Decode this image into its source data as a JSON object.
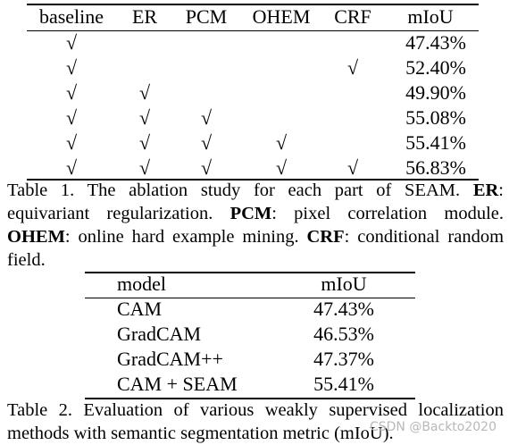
{
  "table1": {
    "headers": [
      "baseline",
      "ER",
      "PCM",
      "OHEM",
      "CRF",
      "mIoU"
    ],
    "check_glyph": "√",
    "rows": [
      {
        "checks": [
          true,
          false,
          false,
          false,
          false
        ],
        "miou": "47.43%"
      },
      {
        "checks": [
          true,
          false,
          false,
          false,
          true
        ],
        "miou": "52.40%"
      },
      {
        "checks": [
          true,
          true,
          false,
          false,
          false
        ],
        "miou": "49.90%"
      },
      {
        "checks": [
          true,
          true,
          true,
          false,
          false
        ],
        "miou": "55.08%"
      },
      {
        "checks": [
          true,
          true,
          true,
          true,
          false
        ],
        "miou": "55.41%"
      },
      {
        "checks": [
          true,
          true,
          true,
          true,
          true
        ],
        "miou": "56.83%"
      }
    ],
    "caption": {
      "prefix": "Table 1. The ablation study for each part of SEAM. ",
      "er_term": "ER",
      "er_text": ": equivariant regularization. ",
      "pcm_term": "PCM",
      "pcm_text": ": pixel correlation module. ",
      "ohem_term": "OHEM",
      "ohem_text": ": online hard example mining. ",
      "crf_term": "CRF",
      "crf_text": ": conditional random field."
    }
  },
  "table2": {
    "headers": [
      "model",
      "mIoU"
    ],
    "rows": [
      {
        "model": "CAM",
        "miou": "47.43%"
      },
      {
        "model": "GradCAM",
        "miou": "46.53%"
      },
      {
        "model": "GradCAM++",
        "miou": "47.37%"
      },
      {
        "model": "CAM + SEAM",
        "miou": "55.41%"
      }
    ],
    "caption": "Table 2. Evaluation of various weakly supervised localization methods with semantic segmentation metric (mIoU)."
  },
  "watermark": "CSDN @Backto2020"
}
